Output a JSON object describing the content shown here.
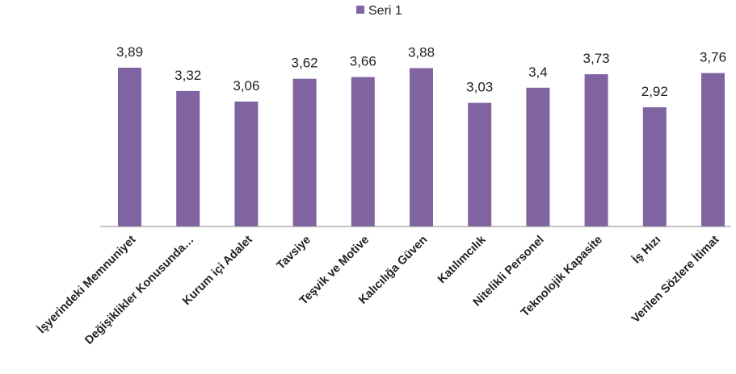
{
  "chart_data": {
    "type": "bar",
    "title": "",
    "xlabel": "",
    "ylabel": "",
    "ylim": [
      0,
      4.4
    ],
    "grid": false,
    "legend": {
      "position": "top-center",
      "entries": [
        "Seri 1"
      ]
    },
    "categories": [
      "İşyerindeki Memnuniyet",
      "Değişiklikler Konusunda…",
      "Kurum içi Adalet",
      "Tavsiye",
      "Teşvik ve Motive",
      "Kalıcılığa Güven",
      "Katılımcılık",
      "Nitelikli Personel",
      "Teknolojik Kapasite",
      "İş Hızı",
      "Verilen Sözlere İtimat"
    ],
    "series": [
      {
        "name": "Seri 1",
        "color": "#8064a2",
        "values": [
          3.89,
          3.32,
          3.06,
          3.62,
          3.66,
          3.88,
          3.03,
          3.4,
          3.73,
          2.92,
          3.76
        ],
        "labels": [
          "3,89",
          "3,32",
          "3,06",
          "3,62",
          "3,66",
          "3,88",
          "3,03",
          "3,4",
          "3,73",
          "2,92",
          "3,76"
        ]
      }
    ],
    "axis_color": "#888888"
  }
}
